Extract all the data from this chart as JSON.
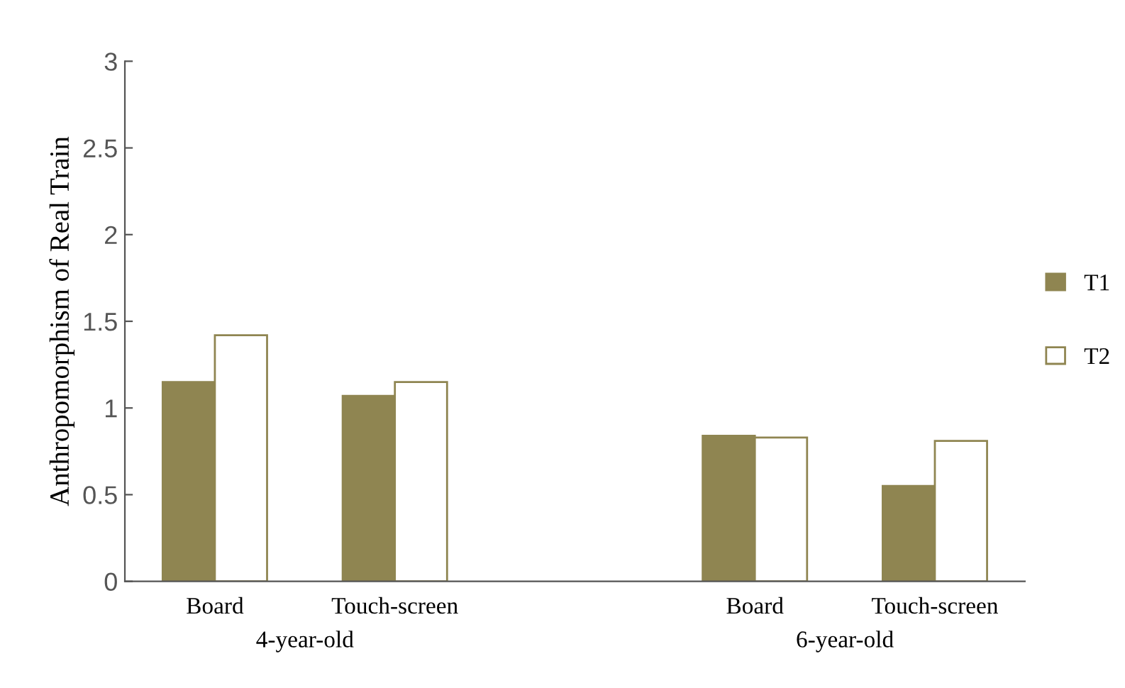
{
  "chart_data": {
    "type": "bar",
    "ylabel": "Anthropomorphism of Real Train",
    "categories": [
      "Board",
      "Touch-screen",
      null,
      "Board",
      "Touch-screen"
    ],
    "series": [
      {
        "name": "T1",
        "color": "#8f8551",
        "values": [
          1.15,
          1.07,
          null,
          0.84,
          0.55
        ]
      },
      {
        "name": "T2",
        "color": "#ffffff",
        "values": [
          1.42,
          1.15,
          null,
          0.83,
          0.81
        ]
      }
    ],
    "annotations": [
      "4-year-old",
      "6-year-old"
    ],
    "ylim": [
      0,
      3
    ],
    "yticks": [
      0,
      0.5,
      1,
      1.5,
      2,
      2.5,
      3
    ],
    "grid": false,
    "legend": "right"
  }
}
